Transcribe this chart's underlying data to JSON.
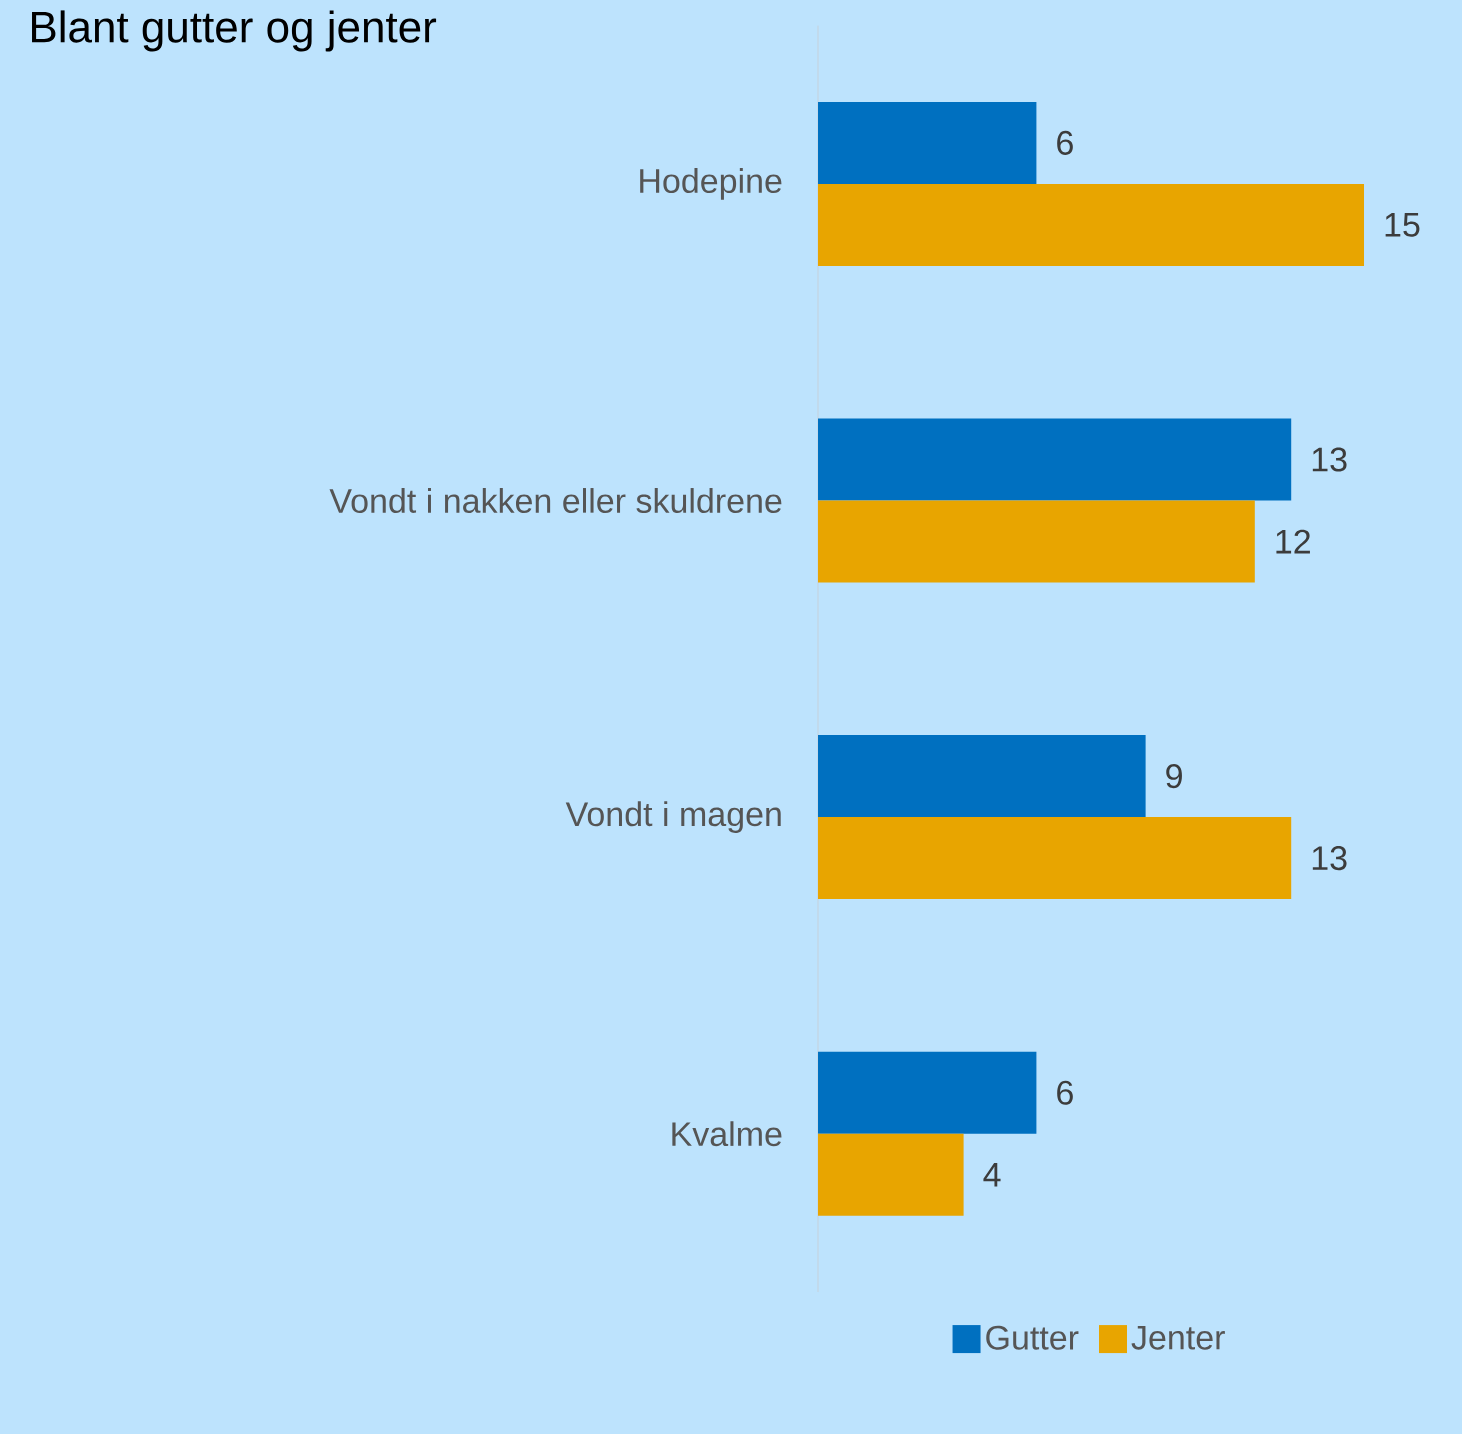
{
  "chart_data": {
    "type": "bar",
    "orientation": "horizontal",
    "title": "Blant gutter og jenter",
    "categories": [
      "Hodepine",
      "Vondt i nakken eller skuldrene",
      "Vondt i magen",
      "Kvalme"
    ],
    "series": [
      {
        "name": "Gutter",
        "color": "#0070c0",
        "values": [
          6,
          13,
          9,
          6
        ]
      },
      {
        "name": "Jenter",
        "color": "#e8a500",
        "values": [
          15,
          12,
          13,
          4
        ]
      }
    ],
    "data_labels": true,
    "legend": "bottom"
  }
}
